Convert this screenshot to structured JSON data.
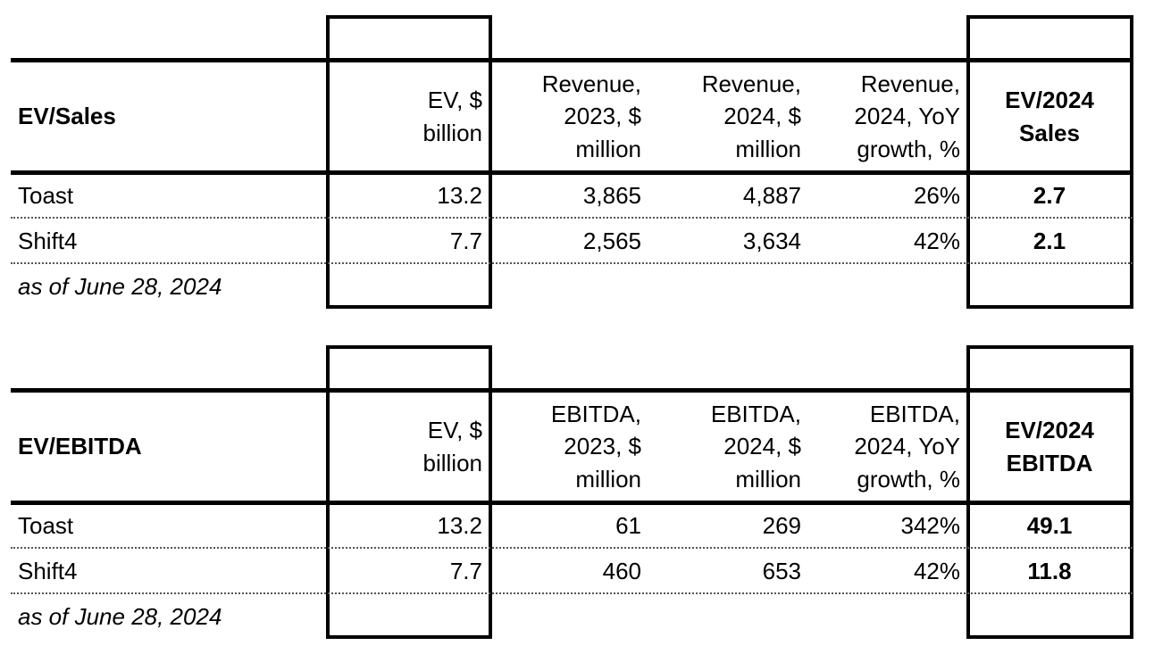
{
  "tables": [
    {
      "title": "EV/Sales",
      "headers": [
        [
          "EV, $",
          "billion"
        ],
        [
          "Revenue,",
          "2023, $",
          "million"
        ],
        [
          "Revenue,",
          "2024, $",
          "million"
        ],
        [
          "Revenue,",
          "2024, YoY",
          "growth, %"
        ],
        [
          "EV/2024",
          "Sales"
        ]
      ],
      "rows": [
        [
          "Toast",
          "13.2",
          "3,865",
          "4,887",
          "26%",
          "2.7"
        ],
        [
          "Shift4",
          "7.7",
          "2,565",
          "3,634",
          "42%",
          "2.1"
        ]
      ],
      "note": "as of June 28, 2024"
    },
    {
      "title": "EV/EBITDA",
      "headers": [
        [
          "EV, $",
          "billion"
        ],
        [
          "EBITDA,",
          "2023, $",
          "million"
        ],
        [
          "EBITDA,",
          "2024, $",
          "million"
        ],
        [
          "EBITDA,",
          "2024, YoY",
          "growth, %"
        ],
        [
          "EV/2024",
          "EBITDA"
        ]
      ],
      "rows": [
        [
          "Toast",
          "13.2",
          "61",
          "269",
          "342%",
          "49.1"
        ],
        [
          "Shift4",
          "7.7",
          "460",
          "653",
          "42%",
          "11.8"
        ]
      ],
      "note": "as of June 28, 2024"
    }
  ]
}
